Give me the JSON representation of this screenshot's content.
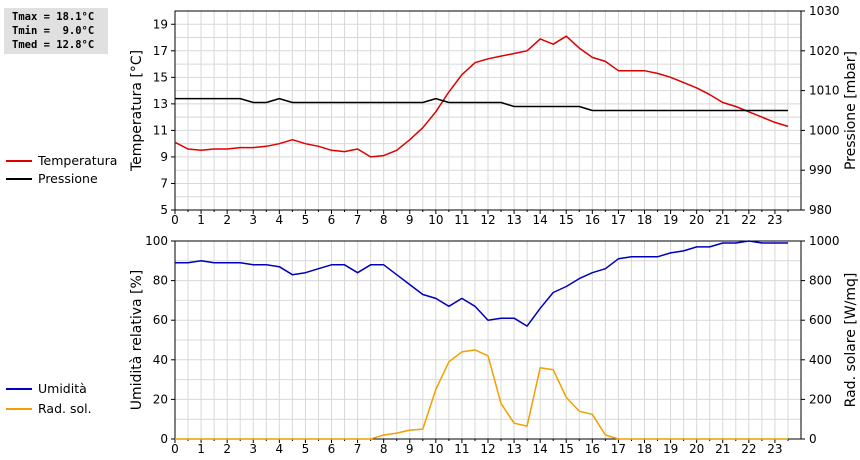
{
  "stats": {
    "tmax": "Tmax = 18.1°C",
    "tmin": "Tmin =  9.0°C",
    "tmed": "Tmed = 12.8°C"
  },
  "legend": {
    "top": [
      {
        "label": "Temperatura",
        "color": "#dd0000"
      },
      {
        "label": "Pressione",
        "color": "#000000"
      }
    ],
    "bottom": [
      {
        "label": "Umidità",
        "color": "#0000bb"
      },
      {
        "label": "Rad. sol.",
        "color": "#f0a000"
      }
    ]
  },
  "chart_data": [
    {
      "type": "line",
      "ylabel": "Temperatura [°C]",
      "ylabel_right": "Pressione [mbar]",
      "xlim": [
        0,
        24
      ],
      "xticks": [
        "0",
        "1",
        "2",
        "3",
        "4",
        "5",
        "6",
        "7",
        "8",
        "9",
        "10",
        "11",
        "12",
        "13",
        "14",
        "15",
        "16",
        "17",
        "18",
        "19",
        "20",
        "21",
        "22",
        "23"
      ],
      "ylim": [
        5,
        20
      ],
      "yticks": [
        "5",
        "7",
        "9",
        "11",
        "13",
        "15",
        "17",
        "19"
      ],
      "ylim_right": [
        980,
        1030
      ],
      "yticks_right": [
        "980",
        "990",
        "1000",
        "1010",
        "1020",
        "1030"
      ],
      "grid": true,
      "series": [
        {
          "name": "Temperatura",
          "axis": "left",
          "color": "#dd0000",
          "x": [
            0,
            0.5,
            1,
            1.5,
            2,
            2.5,
            3,
            3.5,
            4,
            4.5,
            5,
            5.5,
            6,
            6.5,
            7,
            7.5,
            8,
            8.5,
            9,
            9.5,
            10,
            10.5,
            11,
            11.5,
            12,
            12.5,
            13,
            13.5,
            14,
            14.5,
            15,
            15.5,
            16,
            16.5,
            17,
            17.5,
            18,
            18.5,
            19,
            19.5,
            20,
            20.5,
            21,
            21.5,
            22,
            22.5,
            23,
            23.5
          ],
          "values": [
            10.1,
            9.6,
            9.5,
            9.6,
            9.6,
            9.7,
            9.7,
            9.8,
            10.0,
            10.3,
            10.0,
            9.8,
            9.5,
            9.4,
            9.6,
            9.0,
            9.1,
            9.5,
            10.3,
            11.2,
            12.4,
            13.9,
            15.2,
            16.1,
            16.4,
            16.6,
            16.8,
            17.0,
            17.9,
            17.5,
            18.1,
            17.2,
            16.5,
            16.2,
            15.5,
            15.5,
            15.5,
            15.3,
            15.0,
            14.6,
            14.2,
            13.7,
            13.1,
            12.8,
            12.4,
            12.0,
            11.6,
            11.3
          ]
        },
        {
          "name": "Pressione",
          "axis": "right",
          "color": "#000000",
          "x": [
            0,
            0.5,
            1,
            1.5,
            2,
            2.5,
            3,
            3.5,
            4,
            4.5,
            5,
            5.5,
            6,
            6.5,
            7,
            7.5,
            8,
            8.5,
            9,
            9.5,
            10,
            10.5,
            11,
            11.5,
            12,
            12.5,
            13,
            13.5,
            14,
            14.5,
            15,
            15.5,
            16,
            16.5,
            17,
            17.5,
            18,
            18.5,
            19,
            19.5,
            20,
            20.5,
            21,
            21.5,
            22,
            22.5,
            23,
            23.5
          ],
          "values": [
            1008,
            1008,
            1008,
            1008,
            1008,
            1008,
            1007,
            1007,
            1008,
            1007,
            1007,
            1007,
            1007,
            1007,
            1007,
            1007,
            1007,
            1007,
            1007,
            1007,
            1008,
            1007,
            1007,
            1007,
            1007,
            1007,
            1006,
            1006,
            1006,
            1006,
            1006,
            1006,
            1005,
            1005,
            1005,
            1005,
            1005,
            1005,
            1005,
            1005,
            1005,
            1005,
            1005,
            1005,
            1005,
            1005,
            1005,
            1005
          ]
        }
      ]
    },
    {
      "type": "line",
      "ylabel": "Umidità relativa [%]",
      "ylabel_right": "Rad. solare [W/mq]",
      "xlim": [
        0,
        24
      ],
      "xticks": [
        "0",
        "1",
        "2",
        "3",
        "4",
        "5",
        "6",
        "7",
        "8",
        "9",
        "10",
        "11",
        "12",
        "13",
        "14",
        "15",
        "16",
        "17",
        "18",
        "19",
        "20",
        "21",
        "22",
        "23"
      ],
      "ylim": [
        0,
        100
      ],
      "yticks": [
        "0",
        "20",
        "40",
        "60",
        "80",
        "100"
      ],
      "ylim_right": [
        0,
        1000
      ],
      "yticks_right": [
        "0",
        "200",
        "400",
        "600",
        "800",
        "1000"
      ],
      "grid": true,
      "series": [
        {
          "name": "Umidità",
          "axis": "left",
          "color": "#0000bb",
          "x": [
            0,
            0.5,
            1,
            1.5,
            2,
            2.5,
            3,
            3.5,
            4,
            4.5,
            5,
            5.5,
            6,
            6.5,
            7,
            7.5,
            8,
            8.5,
            9,
            9.5,
            10,
            10.5,
            11,
            11.5,
            12,
            12.5,
            13,
            13.5,
            14,
            14.5,
            15,
            15.5,
            16,
            16.5,
            17,
            17.5,
            18,
            18.5,
            19,
            19.5,
            20,
            20.5,
            21,
            21.5,
            22,
            22.5,
            23,
            23.5
          ],
          "values": [
            89,
            89,
            90,
            89,
            89,
            89,
            88,
            88,
            87,
            83,
            84,
            86,
            88,
            88,
            84,
            88,
            88,
            83,
            78,
            73,
            71,
            67,
            71,
            67,
            60,
            61,
            61,
            57,
            66,
            74,
            77,
            81,
            84,
            86,
            91,
            92,
            92,
            92,
            94,
            95,
            97,
            97,
            99,
            99,
            100,
            99,
            99,
            99
          ]
        },
        {
          "name": "Rad. sol.",
          "axis": "right",
          "color": "#f0a000",
          "x": [
            0,
            0.5,
            1,
            1.5,
            2,
            2.5,
            3,
            3.5,
            4,
            4.5,
            5,
            5.5,
            6,
            6.5,
            7,
            7.5,
            8,
            8.5,
            9,
            9.5,
            10,
            10.5,
            11,
            11.5,
            12,
            12.5,
            13,
            13.5,
            14,
            14.5,
            15,
            15.5,
            16,
            16.5,
            17,
            17.5,
            18,
            18.5,
            19,
            19.5,
            20,
            20.5,
            21,
            21.5,
            22,
            22.5,
            23,
            23.5
          ],
          "values": [
            0,
            0,
            0,
            0,
            0,
            0,
            0,
            0,
            0,
            0,
            0,
            0,
            0,
            0,
            0,
            0,
            20,
            30,
            45,
            50,
            250,
            390,
            440,
            450,
            420,
            180,
            80,
            65,
            360,
            350,
            210,
            140,
            125,
            20,
            0,
            0,
            0,
            0,
            0,
            0,
            0,
            0,
            0,
            0,
            0,
            0,
            0,
            0
          ]
        }
      ]
    }
  ]
}
